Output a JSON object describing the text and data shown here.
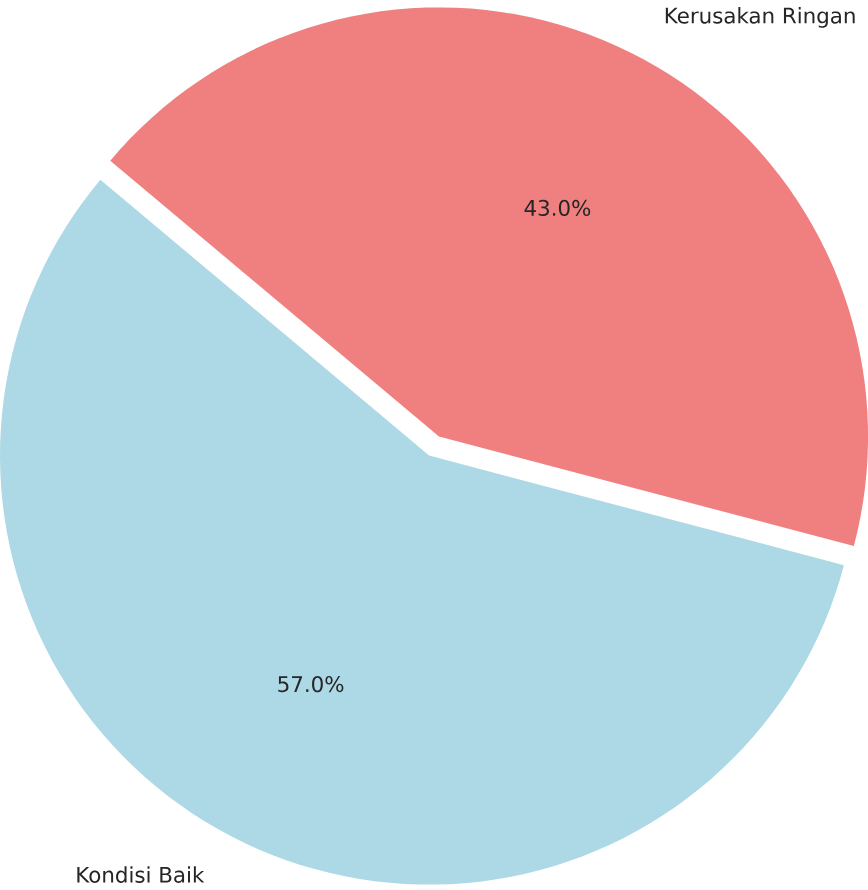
{
  "chart_data": {
    "type": "pie",
    "categories": [
      "Kondisi Baik",
      "Kerusakan Ringan"
    ],
    "values": [
      57.0,
      43.0
    ],
    "colors": [
      "#add8e6",
      "#f08080"
    ],
    "value_labels": [
      "57.0%",
      "43.0%"
    ]
  }
}
